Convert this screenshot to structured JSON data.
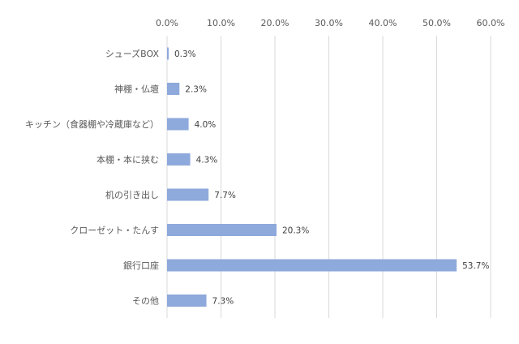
{
  "chart_data": {
    "type": "bar",
    "orientation": "horizontal",
    "title": "",
    "xlabel": "",
    "ylabel": "",
    "categories": [
      "シューズBOX",
      "神棚・仏壇",
      "キッチン（食器棚や冷蔵庫など）",
      "本棚・本に挟む",
      "机の引き出し",
      "クローゼット・たんす",
      "銀行口座",
      "その他"
    ],
    "values": [
      0.3,
      2.3,
      4.0,
      4.3,
      7.7,
      20.3,
      53.7,
      7.3
    ],
    "value_labels": [
      "0.3%",
      "2.3%",
      "4.0%",
      "4.3%",
      "7.7%",
      "20.3%",
      "53.7%",
      "7.3%"
    ],
    "xlim": [
      0,
      60
    ],
    "ticks": [
      0,
      10,
      20,
      30,
      40,
      50,
      60
    ],
    "tick_labels": [
      "0.0%",
      "10.0%",
      "20.0%",
      "30.0%",
      "40.0%",
      "50.0%",
      "60.0%"
    ],
    "axis_position": "top",
    "grid": true,
    "legend": "none",
    "colors": {
      "bar": "#8EA9DB",
      "grid": "#D9D9D9",
      "text": "#595959"
    }
  }
}
